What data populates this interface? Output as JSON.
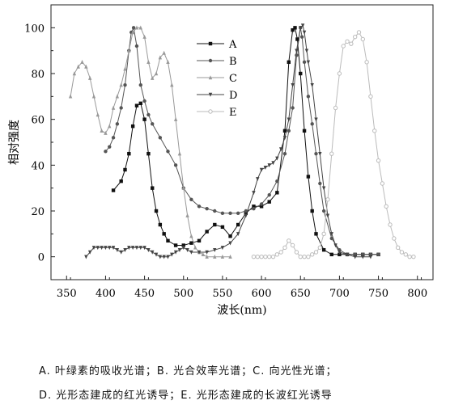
{
  "chart_data": {
    "type": "line",
    "xlabel": "波长(nm)",
    "ylabel": "相对强度",
    "xlim": [
      330,
      820
    ],
    "ylim": [
      -10,
      110
    ],
    "xticks": [
      350,
      400,
      450,
      500,
      550,
      600,
      650,
      700,
      750,
      800
    ],
    "yticks": [
      0,
      20,
      40,
      60,
      80,
      100
    ],
    "legend_position": "top-center",
    "series": [
      {
        "name": "A",
        "marker": "square",
        "color": "#111111",
        "x": [
          410,
          420,
          425,
          430,
          435,
          440,
          445,
          450,
          455,
          460,
          465,
          470,
          475,
          480,
          490,
          500,
          510,
          520,
          530,
          540,
          550,
          560,
          570,
          580,
          590,
          600,
          610,
          620,
          630,
          635,
          640,
          643,
          646,
          650,
          655,
          660,
          665,
          670,
          680,
          690,
          700,
          710,
          720,
          730,
          740,
          750
        ],
        "y": [
          29,
          33,
          38,
          45,
          57,
          66,
          67,
          60,
          45,
          30,
          20,
          14,
          10,
          7,
          5,
          5,
          6,
          7,
          11,
          14,
          13,
          9,
          14,
          19,
          22,
          22,
          24,
          28,
          55,
          85,
          99,
          100,
          95,
          80,
          55,
          35,
          20,
          10,
          3,
          1,
          1,
          1,
          1,
          1,
          1,
          1
        ]
      },
      {
        "name": "B",
        "marker": "circle",
        "color": "#555555",
        "x": [
          400,
          405,
          410,
          415,
          420,
          425,
          430,
          433,
          436,
          440,
          445,
          450,
          455,
          460,
          470,
          480,
          490,
          500,
          510,
          520,
          530,
          540,
          550,
          560,
          570,
          580,
          590,
          600,
          610,
          620,
          630,
          635,
          640,
          645,
          650,
          652,
          655,
          660,
          665,
          670,
          675,
          680,
          690,
          700,
          710,
          720,
          730,
          740,
          750
        ],
        "y": [
          46,
          48,
          52,
          58,
          65,
          75,
          90,
          98,
          100,
          92,
          75,
          68,
          62,
          58,
          52,
          46,
          40,
          30,
          25,
          22,
          21,
          20,
          19,
          19,
          19,
          20,
          21,
          23,
          27,
          33,
          45,
          55,
          65,
          88,
          100,
          96,
          85,
          70,
          58,
          45,
          32,
          20,
          8,
          3,
          1,
          1,
          1,
          1,
          1
        ]
      },
      {
        "name": "C",
        "marker": "triangle-up",
        "color": "#999999",
        "x": [
          355,
          360,
          365,
          370,
          375,
          380,
          385,
          390,
          395,
          400,
          405,
          410,
          415,
          420,
          425,
          430,
          435,
          440,
          445,
          450,
          455,
          460,
          465,
          470,
          475,
          480,
          485,
          490,
          495,
          500,
          505,
          510,
          515,
          520,
          525,
          530,
          540,
          550,
          560
        ],
        "y": [
          70,
          80,
          83,
          85,
          83,
          78,
          70,
          62,
          55,
          54,
          57,
          65,
          70,
          75,
          82,
          90,
          98,
          100,
          100,
          96,
          85,
          78,
          80,
          87,
          89,
          85,
          75,
          60,
          45,
          30,
          18,
          9,
          4,
          2,
          1,
          0,
          0,
          0,
          0
        ]
      },
      {
        "name": "D",
        "marker": "triangle-down",
        "color": "#444444",
        "x": [
          375,
          380,
          385,
          390,
          395,
          400,
          405,
          410,
          415,
          420,
          425,
          430,
          435,
          440,
          445,
          450,
          455,
          460,
          465,
          470,
          475,
          480,
          485,
          490,
          495,
          500,
          505,
          510,
          520,
          530,
          540,
          550,
          560,
          570,
          580,
          590,
          595,
          600,
          605,
          610,
          615,
          620,
          625,
          630,
          635,
          640,
          645,
          650,
          653,
          655,
          658,
          660,
          665,
          670,
          675,
          680,
          685,
          690,
          695,
          700,
          710,
          720,
          730,
          740
        ],
        "y": [
          0,
          2,
          4,
          4,
          4,
          4,
          4,
          4,
          3,
          2,
          3,
          4,
          4,
          4,
          4,
          4,
          3,
          2,
          1,
          0,
          0,
          0,
          1,
          2,
          3,
          4,
          3,
          2,
          2,
          2,
          3,
          4,
          6,
          10,
          18,
          28,
          34,
          38,
          39,
          40,
          41,
          43,
          47,
          52,
          60,
          75,
          90,
          100,
          101,
          98,
          90,
          85,
          75,
          60,
          45,
          30,
          18,
          10,
          5,
          2,
          1,
          0,
          0,
          0
        ]
      },
      {
        "name": "E",
        "marker": "circle-open",
        "color": "#bbbbbb",
        "x": [
          590,
          595,
          600,
          605,
          610,
          615,
          620,
          625,
          630,
          635,
          640,
          645,
          650,
          655,
          660,
          665,
          670,
          675,
          680,
          685,
          690,
          695,
          700,
          705,
          710,
          715,
          720,
          725,
          730,
          735,
          740,
          745,
          750,
          755,
          760,
          765,
          770,
          775,
          780,
          785,
          790,
          795
        ],
        "y": [
          0,
          0,
          0,
          0,
          0,
          0,
          1,
          2,
          4,
          7,
          5,
          2,
          0,
          0,
          0,
          1,
          2,
          4,
          10,
          25,
          45,
          65,
          80,
          92,
          94,
          93,
          96,
          98,
          95,
          85,
          70,
          55,
          42,
          32,
          22,
          14,
          8,
          4,
          2,
          1,
          0,
          0
        ]
      }
    ]
  },
  "captions": {
    "line1": "A. 叶绿素的吸收光谱；B. 光合效率光谱；C. 向光性光谱；",
    "line2": "D. 光形态建成的红光诱导；E. 光形态建成的长波红光诱导"
  }
}
